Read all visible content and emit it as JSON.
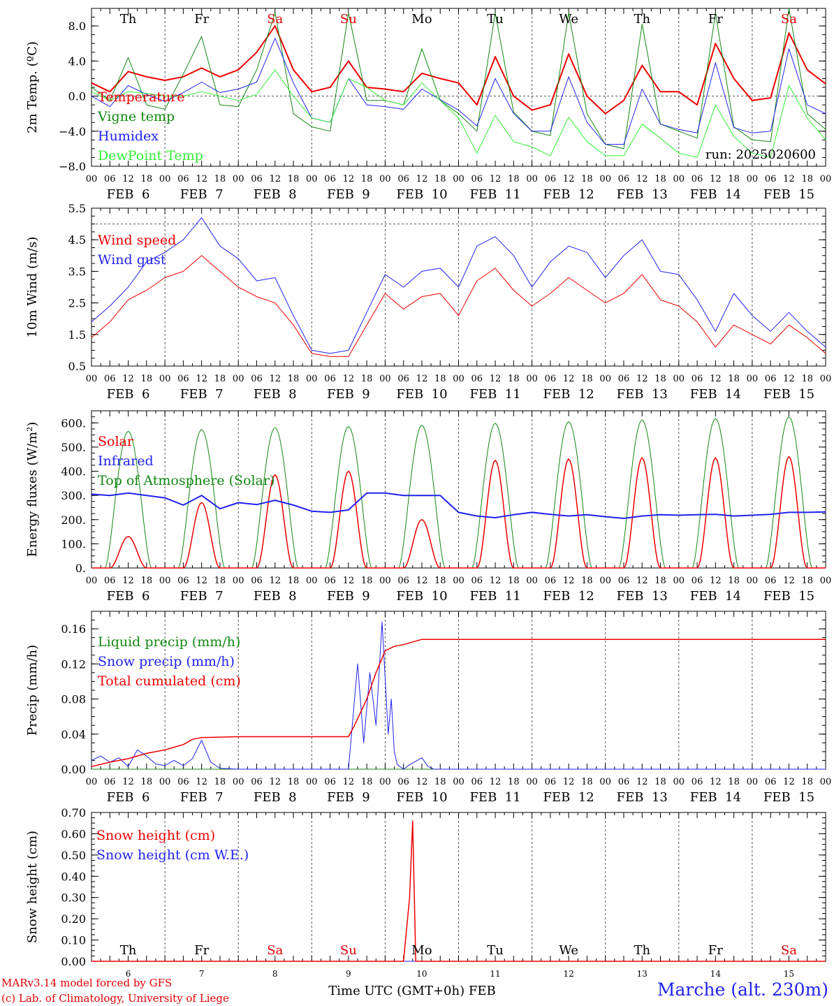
{
  "run_label": "run: 2025020600",
  "footer": {
    "credit1": "MARv3.14 model forced by GFS",
    "credit2": "(c) Lab. of Climatology, University of Liege",
    "xlabel": "Time UTC (GMT+0h) FEB",
    "title": "Marche (alt. 230m)"
  },
  "x_axis": {
    "days": [
      6,
      7,
      8,
      9,
      10,
      11,
      12,
      13,
      14,
      15
    ],
    "weekdays": [
      "Th",
      "Fr",
      "Sa",
      "Su",
      "Mo",
      "Tu",
      "We",
      "Th",
      "Fr",
      "Sa"
    ],
    "weekend_color": "#e00000",
    "hour_ticks": [
      "00",
      "06",
      "12",
      "18"
    ],
    "date_labels": [
      "FEB  6",
      "FEB  7",
      "FEB  8",
      "FEB  9",
      "FEB 10",
      "FEB 11",
      "FEB 12",
      "FEB 13",
      "FEB 14",
      "FEB 15"
    ]
  },
  "chart_data": [
    {
      "id": "temp",
      "type": "line",
      "ylabel": "2m Temp. (ºC)",
      "ylim": [
        -8,
        10
      ],
      "yticks": [
        -8,
        -4,
        0,
        4,
        8
      ],
      "ytick_labels": [
        "−8.0",
        "−4.0",
        "0.0",
        "4.0",
        "8.0"
      ],
      "ref_lines": [
        0
      ],
      "legend": [
        "Temperature",
        "Vigne temp",
        "Humidex",
        "DewPoint Temp"
      ],
      "x": [
        0,
        6,
        12,
        18,
        24,
        30,
        36,
        42,
        48,
        54,
        60,
        66,
        72,
        78,
        84,
        90,
        96,
        102,
        108,
        114,
        120,
        126,
        132,
        138,
        144,
        150,
        156,
        162,
        168,
        174,
        180,
        186,
        192,
        198,
        204,
        210,
        216,
        222,
        228,
        234,
        240
      ],
      "series": [
        {
          "name": "Temperature",
          "color": "#ee0000",
          "width": 2,
          "values": [
            1.5,
            0.5,
            2.8,
            2.2,
            1.8,
            2.2,
            3.2,
            2.2,
            3,
            5,
            8,
            3,
            0.5,
            1,
            4,
            1,
            0.8,
            0.5,
            2.6,
            2.0,
            1.5,
            -1.0,
            4.5,
            0,
            -1.6,
            -1.0,
            4.8,
            0.0,
            -2.0,
            -0.5,
            3.5,
            0.5,
            0.5,
            -1.0,
            6,
            2,
            -0.5,
            -0.2,
            7.2,
            3,
            1.4
          ]
        },
        {
          "name": "Vigne temp",
          "color": "#118811",
          "width": 1,
          "values": [
            1.0,
            -0.5,
            4.4,
            -1.0,
            -1.5,
            2.5,
            6.8,
            -1.0,
            -1.2,
            3,
            9.5,
            -2,
            -3.5,
            -4,
            9.5,
            -0.5,
            -0.5,
            -1.0,
            5.4,
            -0.5,
            -2.0,
            -4.0,
            9.5,
            -1.8,
            -4.0,
            -4.5,
            9.5,
            -2.0,
            -5.5,
            -6.0,
            8.2,
            -3.2,
            -4.0,
            -4.8,
            9.5,
            -3.5,
            -5.0,
            -5.2,
            10,
            -2,
            -3.8
          ]
        },
        {
          "name": "Humidex",
          "color": "#2222ee",
          "width": 1,
          "values": [
            0,
            -1.2,
            1.2,
            0.2,
            -0.6,
            0.4,
            1.6,
            0.4,
            0.8,
            1.6,
            6.6,
            1.5,
            -2.5,
            -3,
            2,
            -1,
            -1.2,
            -1.5,
            0.8,
            -0.4,
            -1.6,
            -3.4,
            2.0,
            -2.0,
            -4.0,
            -4.0,
            2.2,
            -3.0,
            -5.5,
            -5.5,
            0.8,
            -3.2,
            -3.8,
            -4.2,
            3.8,
            -3.6,
            -4.2,
            -4.0,
            5.4,
            -1,
            -2
          ]
        },
        {
          "name": "DewPoint Temp",
          "color": "#33ee33",
          "width": 1,
          "values": [
            0.5,
            -0.5,
            0.5,
            0.3,
            0.0,
            0.0,
            0.5,
            0.0,
            -0.5,
            0.2,
            3,
            0,
            -2.5,
            -3,
            2,
            1,
            -0.5,
            -1.0,
            1.5,
            -0.5,
            -2.5,
            -6.5,
            -2.2,
            -5.2,
            -5.8,
            -6.8,
            -2.4,
            -5.2,
            -6.8,
            -6.8,
            -3.2,
            -4.8,
            -6.5,
            -7.0,
            -1.0,
            -4.6,
            -6.5,
            -7.0,
            1.2,
            -2.5,
            -5.0
          ]
        }
      ]
    },
    {
      "id": "wind",
      "type": "line",
      "ylabel": "10m Wind (m/s)",
      "ylim": [
        0.5,
        5.5
      ],
      "yticks": [
        0.5,
        1.5,
        2.5,
        3.5,
        4.5,
        5.5
      ],
      "ytick_labels": [
        "0.5",
        "1.5",
        "2.5",
        "3.5",
        "4.5",
        "5.5"
      ],
      "ref_lines": [
        5
      ],
      "legend": [
        "Wind speed",
        "Wind gust"
      ],
      "x": [
        0,
        6,
        12,
        18,
        24,
        30,
        36,
        42,
        48,
        54,
        60,
        66,
        72,
        78,
        84,
        90,
        96,
        102,
        108,
        114,
        120,
        126,
        132,
        138,
        144,
        150,
        156,
        162,
        168,
        174,
        180,
        186,
        192,
        198,
        204,
        210,
        216,
        222,
        228,
        234,
        240
      ],
      "series": [
        {
          "name": "Wind speed",
          "color": "#ee0000",
          "width": 1,
          "values": [
            1.4,
            1.9,
            2.6,
            2.9,
            3.3,
            3.5,
            4.0,
            3.5,
            3.0,
            2.7,
            2.5,
            1.8,
            0.9,
            0.8,
            0.8,
            1.8,
            2.8,
            2.3,
            2.7,
            2.8,
            2.1,
            3.2,
            3.6,
            2.9,
            2.4,
            2.8,
            3.3,
            2.9,
            2.5,
            2.8,
            3.4,
            2.6,
            2.4,
            1.9,
            1.1,
            1.8,
            1.5,
            1.2,
            1.8,
            1.4,
            0.9
          ]
        },
        {
          "name": "Wind gust",
          "color": "#2222ee",
          "width": 1,
          "values": [
            1.9,
            2.4,
            3.0,
            3.8,
            4.1,
            4.5,
            5.2,
            4.3,
            3.9,
            3.2,
            3.3,
            2.1,
            1.0,
            0.9,
            1.0,
            2.2,
            3.4,
            3.0,
            3.5,
            3.6,
            3.0,
            4.3,
            4.6,
            4.0,
            3.0,
            3.8,
            4.3,
            4.1,
            3.3,
            4.0,
            4.5,
            3.5,
            3.4,
            2.6,
            1.6,
            2.8,
            2.1,
            1.6,
            2.2,
            1.6,
            1.1
          ]
        }
      ]
    },
    {
      "id": "energy",
      "type": "line",
      "ylabel": "Energy fluxes (W/m²)",
      "ylim": [
        0,
        650
      ],
      "yticks": [
        0,
        100,
        200,
        300,
        400,
        500,
        600
      ],
      "ytick_labels": [
        "0.",
        "100.",
        "200.",
        "300.",
        "400.",
        "500.",
        "600."
      ],
      "legend": [
        "Solar",
        "Infrared",
        "Top of Atmosphere (Solar)"
      ],
      "toa_peaks": [
        565,
        572,
        580,
        585,
        590,
        598,
        605,
        612,
        618,
        625
      ],
      "solar_peaks": [
        130,
        270,
        385,
        400,
        200,
        445,
        450,
        455,
        455,
        460
      ],
      "infrared": {
        "x": [
          0,
          6,
          12,
          18,
          24,
          30,
          36,
          42,
          48,
          54,
          60,
          66,
          72,
          78,
          84,
          90,
          96,
          102,
          108,
          114,
          120,
          126,
          132,
          138,
          144,
          150,
          156,
          162,
          168,
          174,
          180,
          186,
          192,
          198,
          204,
          210,
          216,
          222,
          228,
          234,
          240
        ],
        "values": [
          305,
          300,
          310,
          300,
          290,
          260,
          300,
          245,
          270,
          262,
          280,
          260,
          235,
          230,
          240,
          310,
          310,
          300,
          300,
          300,
          230,
          215,
          208,
          220,
          230,
          222,
          215,
          220,
          212,
          205,
          215,
          220,
          218,
          220,
          222,
          215,
          218,
          222,
          230,
          230,
          232
        ]
      }
    },
    {
      "id": "precip",
      "type": "line",
      "ylabel": "Precip (mm/h)",
      "ylim": [
        0,
        0.18
      ],
      "yticks": [
        0,
        0.04,
        0.08,
        0.12,
        0.16
      ],
      "ytick_labels": [
        "0.00",
        "0.04",
        "0.08",
        "0.12",
        "0.16"
      ],
      "legend": [
        "Liquid precip (mm/h)",
        "Snow precip (mm/h)",
        "Total cumulated (cm)"
      ],
      "snow": {
        "x": [
          0,
          3,
          6,
          9,
          12,
          15,
          18,
          21,
          24,
          27,
          30,
          33,
          36,
          39,
          42,
          48,
          72,
          84,
          87,
          89,
          91,
          93,
          95,
          97,
          98,
          99,
          100,
          102,
          104,
          108,
          110,
          112,
          114,
          120,
          240
        ],
        "values": [
          0.01,
          0.015,
          0.008,
          0.013,
          0.003,
          0.022,
          0.015,
          0.006,
          0.004,
          0.01,
          0.004,
          0.012,
          0.033,
          0.008,
          0.001,
          0,
          0,
          0,
          0.12,
          0.03,
          0.11,
          0.05,
          0.168,
          0.04,
          0.08,
          0.02,
          0.005,
          0,
          0.005,
          0.013,
          0.003,
          0,
          0,
          0,
          0
        ]
      },
      "cumulated": {
        "x": [
          0,
          6,
          12,
          18,
          24,
          30,
          33,
          36,
          48,
          60,
          72,
          84,
          86,
          90,
          93,
          96,
          99,
          102,
          108,
          114,
          240
        ],
        "values": [
          0.003,
          0.008,
          0.012,
          0.018,
          0.022,
          0.028,
          0.034,
          0.036,
          0.037,
          0.037,
          0.037,
          0.037,
          0.05,
          0.08,
          0.11,
          0.135,
          0.14,
          0.142,
          0.148,
          0.148,
          0.148
        ]
      },
      "liquid": {
        "x": [
          0,
          240
        ],
        "values": [
          0,
          0
        ]
      }
    },
    {
      "id": "snow",
      "type": "line",
      "ylabel": "Snow height (cm)",
      "ylim": [
        0,
        0.7
      ],
      "yticks": [
        0,
        0.1,
        0.2,
        0.3,
        0.4,
        0.5,
        0.6,
        0.7
      ],
      "ytick_labels": [
        "0.00",
        "0.10",
        "0.20",
        "0.30",
        "0.40",
        "0.50",
        "0.60",
        "0.70"
      ],
      "legend": [
        "Snow height (cm)",
        "Snow height (cm W.E.)"
      ],
      "height": {
        "x": [
          0,
          102,
          104,
          105,
          106,
          240
        ],
        "values": [
          0,
          0,
          0.3,
          0.66,
          0,
          0
        ]
      },
      "we": {
        "x": [
          0,
          240
        ],
        "values": [
          0,
          0
        ]
      }
    }
  ]
}
